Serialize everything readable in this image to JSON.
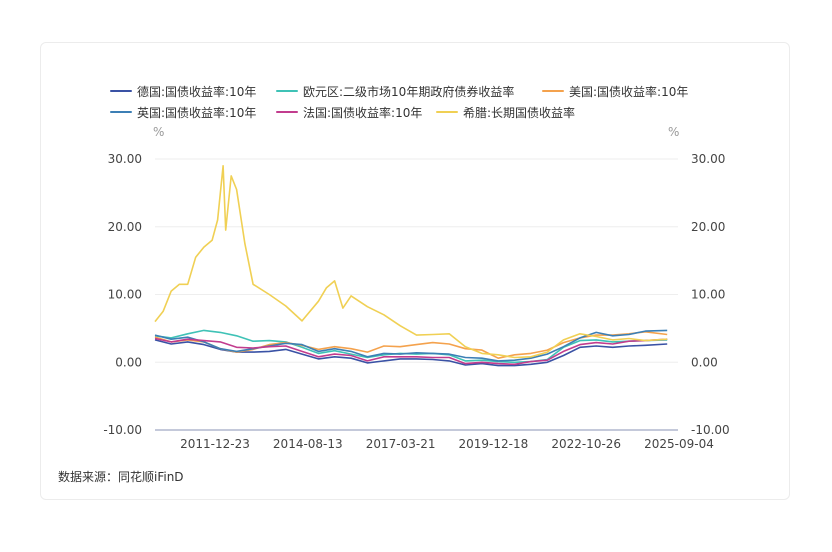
{
  "source": "数据来源：同花顺iFinD",
  "chart_data": {
    "type": "line",
    "left_unit": "%",
    "right_unit": "%",
    "ylim": [
      -10,
      30
    ],
    "y_ticks": [
      "30.00",
      "20.00",
      "10.00",
      "0.00",
      "-10.00"
    ],
    "y_tick_values": [
      30,
      20,
      10,
      0,
      -10
    ],
    "x_tick_labels": [
      "2011-12-23",
      "2014-08-13",
      "2017-03-21",
      "2019-12-18",
      "2022-10-26",
      "2025-09-04"
    ],
    "x_range": [
      "2010-01-01",
      "2025-12-31"
    ],
    "grid": "horizontal",
    "legend_position": "top",
    "series": [
      {
        "name": "德国:国债收益率:10年",
        "color": "#3a52a5",
        "x": [
          "2010-01",
          "2010-07",
          "2011-01",
          "2011-07",
          "2012-01",
          "2012-07",
          "2013-01",
          "2013-07",
          "2014-01",
          "2014-07",
          "2015-01",
          "2015-07",
          "2016-01",
          "2016-07",
          "2017-01",
          "2017-07",
          "2018-01",
          "2018-07",
          "2019-01",
          "2019-07",
          "2020-01",
          "2020-07",
          "2021-01",
          "2021-07",
          "2022-01",
          "2022-07",
          "2023-01",
          "2023-07",
          "2024-01",
          "2024-07",
          "2025-01",
          "2025-09"
        ],
        "values": [
          3.3,
          2.7,
          3.0,
          2.6,
          1.9,
          1.5,
          1.5,
          1.6,
          1.9,
          1.2,
          0.5,
          0.8,
          0.6,
          -0.1,
          0.2,
          0.5,
          0.5,
          0.4,
          0.2,
          -0.4,
          -0.2,
          -0.5,
          -0.5,
          -0.3,
          0.0,
          1.0,
          2.2,
          2.4,
          2.2,
          2.4,
          2.5,
          2.7
        ]
      },
      {
        "name": "欧元区:二级市场10年期政府债券收益率",
        "color": "#3fc2b6",
        "x": [
          "2010-01",
          "2010-07",
          "2011-01",
          "2011-07",
          "2012-01",
          "2012-07",
          "2013-01",
          "2013-07",
          "2014-01",
          "2014-07",
          "2015-01",
          "2015-07",
          "2016-01",
          "2016-07",
          "2017-01",
          "2017-07",
          "2018-01",
          "2018-07",
          "2019-01",
          "2019-07",
          "2020-01",
          "2020-07",
          "2021-01",
          "2021-07",
          "2022-01",
          "2022-07",
          "2023-01",
          "2023-07",
          "2024-01",
          "2024-07",
          "2025-01",
          "2025-09"
        ],
        "values": [
          3.9,
          3.6,
          4.2,
          4.7,
          4.4,
          3.9,
          3.1,
          3.2,
          3.0,
          2.2,
          1.3,
          1.7,
          1.2,
          0.7,
          1.1,
          1.3,
          1.2,
          1.3,
          1.1,
          0.2,
          0.3,
          0.1,
          0.0,
          0.1,
          0.4,
          2.2,
          3.2,
          3.3,
          3.0,
          3.1,
          3.2,
          3.3
        ]
      },
      {
        "name": "美国:国债收益率:10年",
        "color": "#f4a24d",
        "x": [
          "2010-01",
          "2010-07",
          "2011-01",
          "2011-07",
          "2012-01",
          "2012-07",
          "2013-01",
          "2013-07",
          "2014-01",
          "2014-07",
          "2015-01",
          "2015-07",
          "2016-01",
          "2016-07",
          "2017-01",
          "2017-07",
          "2018-01",
          "2018-07",
          "2019-01",
          "2019-07",
          "2020-01",
          "2020-07",
          "2021-01",
          "2021-07",
          "2022-01",
          "2022-07",
          "2023-01",
          "2023-07",
          "2024-01",
          "2024-07",
          "2025-01",
          "2025-09"
        ],
        "values": [
          3.7,
          3.0,
          3.3,
          3.0,
          2.0,
          1.5,
          1.9,
          2.6,
          2.9,
          2.5,
          1.9,
          2.3,
          2.0,
          1.5,
          2.4,
          2.3,
          2.6,
          2.9,
          2.7,
          2.0,
          1.8,
          0.6,
          1.1,
          1.3,
          1.8,
          2.9,
          3.6,
          4.0,
          4.0,
          4.2,
          4.5,
          4.1
        ]
      },
      {
        "name": "英国:国债收益率:10年",
        "color": "#3c7fb5",
        "x": [
          "2010-01",
          "2010-07",
          "2011-01",
          "2011-07",
          "2012-01",
          "2012-07",
          "2013-01",
          "2013-07",
          "2014-01",
          "2014-07",
          "2015-01",
          "2015-07",
          "2016-01",
          "2016-07",
          "2017-01",
          "2017-07",
          "2018-01",
          "2018-07",
          "2019-01",
          "2019-07",
          "2020-01",
          "2020-07",
          "2021-01",
          "2021-07",
          "2022-01",
          "2022-07",
          "2023-01",
          "2023-07",
          "2024-01",
          "2024-07",
          "2025-01",
          "2025-09"
        ],
        "values": [
          4.0,
          3.4,
          3.7,
          3.0,
          2.0,
          1.6,
          2.0,
          2.4,
          2.8,
          2.6,
          1.6,
          2.0,
          1.6,
          0.8,
          1.3,
          1.2,
          1.4,
          1.3,
          1.2,
          0.7,
          0.6,
          0.2,
          0.3,
          0.6,
          1.2,
          2.3,
          3.6,
          4.4,
          3.9,
          4.1,
          4.6,
          4.7
        ]
      },
      {
        "name": "法国:国债收益率:10年",
        "color": "#c23c8e",
        "x": [
          "2010-01",
          "2010-07",
          "2011-01",
          "2011-07",
          "2012-01",
          "2012-07",
          "2013-01",
          "2013-07",
          "2014-01",
          "2014-07",
          "2015-01",
          "2015-07",
          "2016-01",
          "2016-07",
          "2017-01",
          "2017-07",
          "2018-01",
          "2018-07",
          "2019-01",
          "2019-07",
          "2020-01",
          "2020-07",
          "2021-01",
          "2021-07",
          "2022-01",
          "2022-07",
          "2023-01",
          "2023-07",
          "2024-01",
          "2024-07",
          "2025-01",
          "2025-09"
        ],
        "values": [
          3.5,
          3.0,
          3.4,
          3.2,
          3.0,
          2.2,
          2.1,
          2.3,
          2.4,
          1.6,
          0.8,
          1.2,
          1.0,
          0.2,
          0.8,
          0.8,
          0.8,
          0.7,
          0.7,
          -0.2,
          0.0,
          -0.2,
          -0.3,
          0.1,
          0.3,
          1.6,
          2.6,
          2.9,
          2.7,
          3.1,
          3.2,
          3.4
        ]
      },
      {
        "name": "希腊:长期国债收益率",
        "color": "#f0d054",
        "x": [
          "2010-01",
          "2010-04",
          "2010-07",
          "2010-10",
          "2011-01",
          "2011-04",
          "2011-07",
          "2011-10",
          "2011-12",
          "2012-02",
          "2012-03",
          "2012-05",
          "2012-07",
          "2012-10",
          "2013-01",
          "2013-07",
          "2014-01",
          "2014-07",
          "2015-01",
          "2015-04",
          "2015-07",
          "2015-10",
          "2016-01",
          "2016-07",
          "2017-01",
          "2017-07",
          "2018-01",
          "2018-07",
          "2019-01",
          "2019-07",
          "2020-01",
          "2020-07",
          "2021-01",
          "2021-07",
          "2022-01",
          "2022-07",
          "2023-01",
          "2023-07",
          "2024-01",
          "2024-07",
          "2025-01",
          "2025-09"
        ],
        "values": [
          6.0,
          7.5,
          10.5,
          11.5,
          11.5,
          15.5,
          17.0,
          18.0,
          21.0,
          29.0,
          19.5,
          27.5,
          25.5,
          17.5,
          11.5,
          10.0,
          8.3,
          6.1,
          9.0,
          11.0,
          12.0,
          8.0,
          9.8,
          8.2,
          7.0,
          5.4,
          4.0,
          4.1,
          4.2,
          2.3,
          1.3,
          1.1,
          0.7,
          0.8,
          1.5,
          3.3,
          4.2,
          3.8,
          3.3,
          3.5,
          3.2,
          3.4
        ]
      }
    ]
  }
}
